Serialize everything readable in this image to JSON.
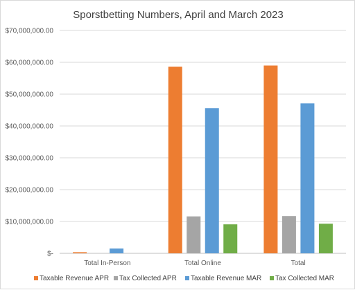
{
  "chart_data": {
    "type": "bar",
    "title": "Sporstbetting Numbers, April and March 2023",
    "categories": [
      "Total In-Person",
      "Total Online",
      "Total"
    ],
    "series": [
      {
        "name": "Taxable Revenue APR",
        "color": "#ed7d31",
        "values": [
          350000,
          58600000,
          59000000
        ]
      },
      {
        "name": "Tax Collected APR",
        "color": "#a5a5a5",
        "values": [
          0,
          11600000,
          11700000
        ]
      },
      {
        "name": "Taxable Revenue MAR",
        "color": "#5b9bd5",
        "values": [
          1500000,
          45600000,
          47100000
        ]
      },
      {
        "name": "Tax Collected MAR",
        "color": "#70ad47",
        "values": [
          0,
          9100000,
          9300000
        ]
      }
    ],
    "ylim": [
      0,
      70000000
    ],
    "yticks": [
      0,
      10000000,
      20000000,
      30000000,
      40000000,
      50000000,
      60000000,
      70000000
    ],
    "ytick_labels": [
      "$-",
      "$10,000,000.00",
      "$20,000,000.00",
      "$30,000,000.00",
      "$40,000,000.00",
      "$50,000,000.00",
      "$60,000,000.00",
      "$70,000,000.00"
    ],
    "grid": true,
    "legend_position": "bottom"
  }
}
